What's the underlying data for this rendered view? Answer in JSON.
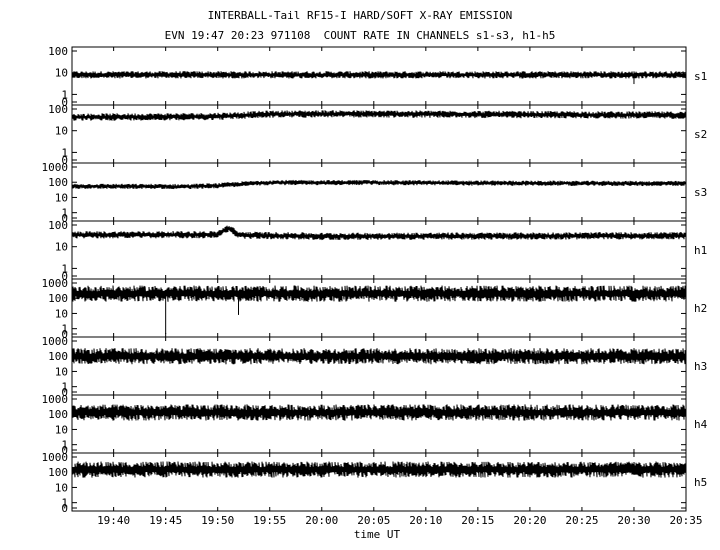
{
  "title": "INTERBALL-Tail RF15-I HARD/SOFT X-RAY EMISSION",
  "subtitle": "EVN 19:47 20:23 971108  COUNT RATE IN CHANNELS s1-s3, h1-h5",
  "chart_data": {
    "type": "line",
    "title": "INTERBALL-Tail RF15-I HARD/SOFT X-RAY EMISSION",
    "subtitle": "EVN 19:47 20:23 971108  COUNT RATE IN CHANNELS s1-s3, h1-h5",
    "xlabel": "time UT",
    "x_ticks": [
      "19:40",
      "19:45",
      "19:50",
      "19:55",
      "20:00",
      "20:05",
      "20:10",
      "20:15",
      "20:20",
      "20:25",
      "20:30",
      "20:35"
    ],
    "x_range": [
      "19:36",
      "20:35"
    ],
    "y_scale": "log",
    "grid": false,
    "panels": [
      {
        "name": "s1",
        "y_ticks": [
          "100",
          "10",
          "1",
          "0"
        ],
        "ylim": [
          0,
          100
        ],
        "series": {
          "x": [
            "19:36",
            "19:50",
            "20:05",
            "20:20",
            "20:35"
          ],
          "y": [
            8,
            8,
            8,
            8,
            8
          ]
        },
        "events": [
          {
            "time": "20:30",
            "min": 3
          }
        ]
      },
      {
        "name": "s2",
        "y_ticks": [
          "100",
          "10",
          "1",
          "0"
        ],
        "ylim": [
          0,
          100
        ],
        "series": {
          "x": [
            "19:36",
            "19:49",
            "19:51",
            "19:55",
            "20:00",
            "20:10",
            "20:20",
            "20:35"
          ],
          "y": [
            42,
            45,
            48,
            58,
            60,
            58,
            55,
            52
          ]
        }
      },
      {
        "name": "s3",
        "y_ticks": [
          "1000",
          "100",
          "10",
          "1",
          "0"
        ],
        "ylim": [
          0,
          1000
        ],
        "series": {
          "x": [
            "19:36",
            "19:47",
            "19:50",
            "19:53",
            "19:55",
            "20:05",
            "20:15",
            "20:25",
            "20:35"
          ],
          "y": [
            55,
            52,
            60,
            82,
            95,
            95,
            88,
            85,
            82
          ]
        }
      },
      {
        "name": "h1",
        "y_ticks": [
          "100",
          "10",
          "1",
          "0"
        ],
        "ylim": [
          0,
          100
        ],
        "series": {
          "x": [
            "19:36",
            "19:50",
            "19:51",
            "19:52",
            "20:00",
            "20:35"
          ],
          "y": [
            35,
            36,
            70,
            34,
            30,
            32
          ]
        }
      },
      {
        "name": "h2",
        "y_ticks": [
          "1000",
          "100",
          "10",
          "1",
          "0"
        ],
        "ylim": [
          0,
          1000
        ],
        "series": {
          "x": [
            "19:36",
            "20:35"
          ],
          "y": [
            200,
            200
          ]
        },
        "events": [
          {
            "time": "19:45",
            "min": 0
          },
          {
            "time": "19:52",
            "min": 8
          }
        ]
      },
      {
        "name": "h3",
        "y_ticks": [
          "1000",
          "100",
          "10",
          "1",
          "0"
        ],
        "ylim": [
          0,
          1000
        ],
        "series": {
          "x": [
            "19:36",
            "20:35"
          ],
          "y": [
            100,
            100
          ]
        }
      },
      {
        "name": "h4",
        "y_ticks": [
          "1000",
          "100",
          "10",
          "1",
          "0"
        ],
        "ylim": [
          0,
          1000
        ],
        "series": {
          "x": [
            "19:36",
            "20:35"
          ],
          "y": [
            130,
            130
          ]
        }
      },
      {
        "name": "h5",
        "y_ticks": [
          "1000",
          "100",
          "10",
          "1",
          "0"
        ],
        "ylim": [
          0,
          1000
        ],
        "series": {
          "x": [
            "19:36",
            "20:35"
          ],
          "y": [
            150,
            150
          ]
        }
      }
    ]
  }
}
